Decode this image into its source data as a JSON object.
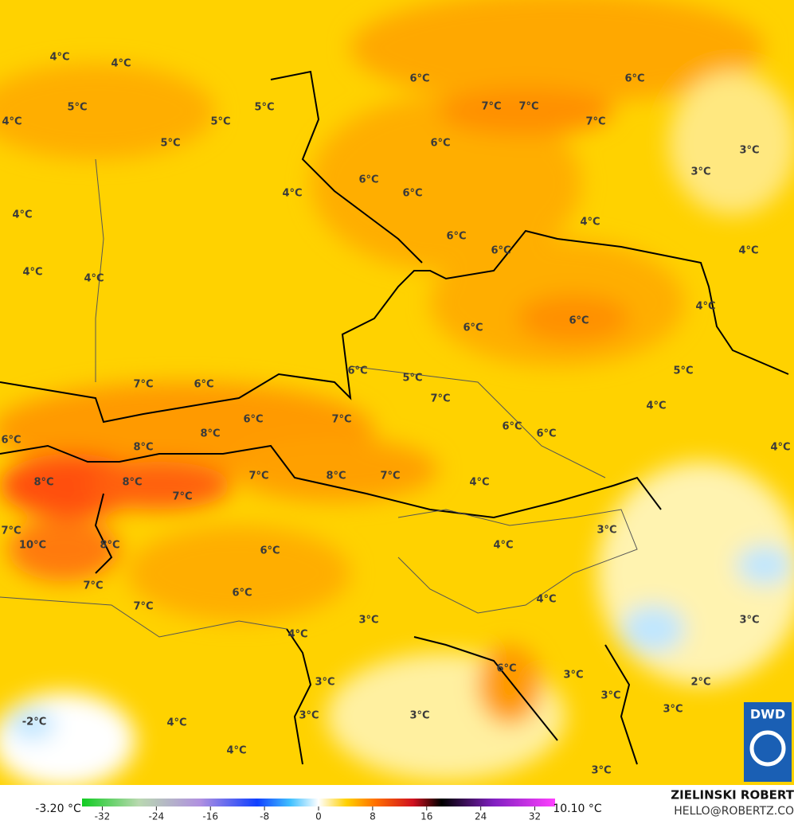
{
  "map": {
    "labels": [
      "4°C",
      "4°C",
      "5°C",
      "4°C",
      "5°C",
      "5°C",
      "5°C",
      "6°C",
      "6°C",
      "7°C",
      "7°C",
      "7°C",
      "6°C",
      "3°C",
      "3°C",
      "6°C",
      "6°C",
      "4°C",
      "4°C",
      "4°C",
      "6°C",
      "6°C",
      "4°C",
      "4°C",
      "4°C",
      "4°C",
      "6°C",
      "6°C",
      "6°C",
      "5°C",
      "5°C",
      "7°C",
      "6°C",
      "7°C",
      "4°C",
      "6°C",
      "7°C",
      "6°C",
      "6°C",
      "8°C",
      "6°C",
      "8°C",
      "4°C",
      "7°C",
      "8°C",
      "7°C",
      "4°C",
      "8°C",
      "8°C",
      "7°C",
      "3°C",
      "7°C",
      "10°C",
      "8°C",
      "4°C",
      "6°C",
      "7°C",
      "6°C",
      "4°C",
      "7°C",
      "3°C",
      "4°C",
      "3°C",
      "6°C",
      "3°C",
      "3°C",
      "2°C",
      "3°C",
      "3°C",
      "3°C",
      "3°C",
      "-2°C",
      "4°C",
      "4°C",
      "3°C"
    ],
    "logo": "DWD"
  },
  "colorbar": {
    "min_label": "-3.20 °C",
    "max_label": "10.10 °C",
    "lim": [
      -35,
      35
    ],
    "ticks": [
      -32,
      -24,
      -16,
      -8,
      0,
      8,
      16,
      24,
      32
    ]
  },
  "credit": {
    "name": "ZIELINSKI ROBERT",
    "email": "HELLO@ROBERTZ.CO"
  }
}
